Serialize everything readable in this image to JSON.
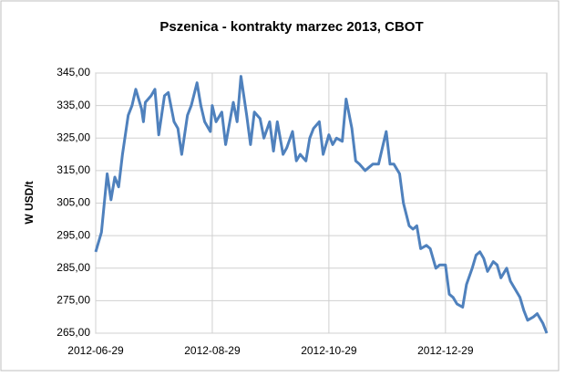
{
  "chart_data": {
    "type": "line",
    "title": "Pszenica - kontrakty marzec 2013, CBOT",
    "y_label": "W USD/t",
    "x": [
      "2012-06-29",
      "2012-07-02",
      "2012-07-05",
      "2012-07-07",
      "2012-07-09",
      "2012-07-11",
      "2012-07-13",
      "2012-07-16",
      "2012-07-18",
      "2012-07-20",
      "2012-07-23",
      "2012-07-24",
      "2012-07-25",
      "2012-07-28",
      "2012-07-30",
      "2012-08-01",
      "2012-08-04",
      "2012-08-06",
      "2012-08-09",
      "2012-08-11",
      "2012-08-13",
      "2012-08-16",
      "2012-08-18",
      "2012-08-21",
      "2012-08-23",
      "2012-08-25",
      "2012-08-28",
      "2012-08-29",
      "2012-08-31",
      "2012-09-03",
      "2012-09-05",
      "2012-09-09",
      "2012-09-11",
      "2012-09-13",
      "2012-09-16",
      "2012-09-18",
      "2012-09-20",
      "2012-09-23",
      "2012-09-25",
      "2012-09-28",
      "2012-09-30",
      "2012-10-02",
      "2012-10-05",
      "2012-10-07",
      "2012-10-10",
      "2012-10-12",
      "2012-10-14",
      "2012-10-17",
      "2012-10-19",
      "2012-10-21",
      "2012-10-24",
      "2012-10-26",
      "2012-10-29",
      "2012-10-31",
      "2012-11-02",
      "2012-11-05",
      "2012-11-07",
      "2012-11-10",
      "2012-11-12",
      "2012-11-14",
      "2012-11-17",
      "2012-11-19",
      "2012-11-21",
      "2012-11-24",
      "2012-11-26",
      "2012-11-28",
      "2012-11-30",
      "2012-12-02",
      "2012-12-05",
      "2012-12-07",
      "2012-12-10",
      "2012-12-12",
      "2012-12-14",
      "2012-12-16",
      "2012-12-19",
      "2012-12-21",
      "2012-12-24",
      "2012-12-26",
      "2012-12-29",
      "2012-12-31",
      "2013-01-02",
      "2013-01-04",
      "2013-01-07",
      "2013-01-09",
      "2013-01-12",
      "2013-01-14",
      "2013-01-16",
      "2013-01-18",
      "2013-01-20",
      "2013-01-23",
      "2013-01-25",
      "2013-01-27",
      "2013-01-30",
      "2013-02-01",
      "2013-02-03",
      "2013-02-06",
      "2013-02-08",
      "2013-02-10",
      "2013-02-13",
      "2013-02-15",
      "2013-02-18",
      "2013-02-20"
    ],
    "series": [
      {
        "name": "Pszenica",
        "color": "#4f81bd",
        "values": [
          290,
          296,
          314,
          306,
          313,
          310,
          320,
          332,
          335,
          340,
          334,
          330,
          336,
          338,
          340,
          326,
          338,
          339,
          330,
          328,
          320,
          332,
          335,
          342,
          335,
          330,
          327,
          335,
          330,
          333,
          323,
          336,
          330,
          344,
          332,
          323,
          333,
          331,
          325,
          330,
          321,
          330,
          320,
          322,
          327,
          318,
          320,
          318,
          325,
          328,
          330,
          320,
          326,
          323,
          325,
          324,
          337,
          328,
          318,
          317,
          315,
          316,
          317,
          317,
          322,
          327,
          317,
          317,
          314,
          305,
          298,
          297,
          298,
          291,
          292,
          291,
          285,
          286,
          286,
          277,
          276,
          274,
          273,
          280,
          285,
          289,
          290,
          288,
          284,
          287,
          286,
          282,
          285,
          281,
          279,
          276,
          272,
          269,
          270,
          271,
          268,
          265
        ]
      }
    ],
    "xlim": [
      "2012-06-29",
      "2013-02-20"
    ],
    "xticks": [
      "2012-06-29",
      "2012-08-29",
      "2012-10-29",
      "2012-12-29"
    ],
    "ylim": [
      265,
      345
    ],
    "yticks": [
      {
        "value": 265,
        "label": "265,00"
      },
      {
        "value": 275,
        "label": "275,00"
      },
      {
        "value": 285,
        "label": "285,00"
      },
      {
        "value": 295,
        "label": "295,00"
      },
      {
        "value": 305,
        "label": "305,00"
      },
      {
        "value": 315,
        "label": "315,00"
      },
      {
        "value": 325,
        "label": "325,00"
      },
      {
        "value": 335,
        "label": "335,00"
      },
      {
        "value": 345,
        "label": "345,00"
      }
    ],
    "grid": true
  }
}
